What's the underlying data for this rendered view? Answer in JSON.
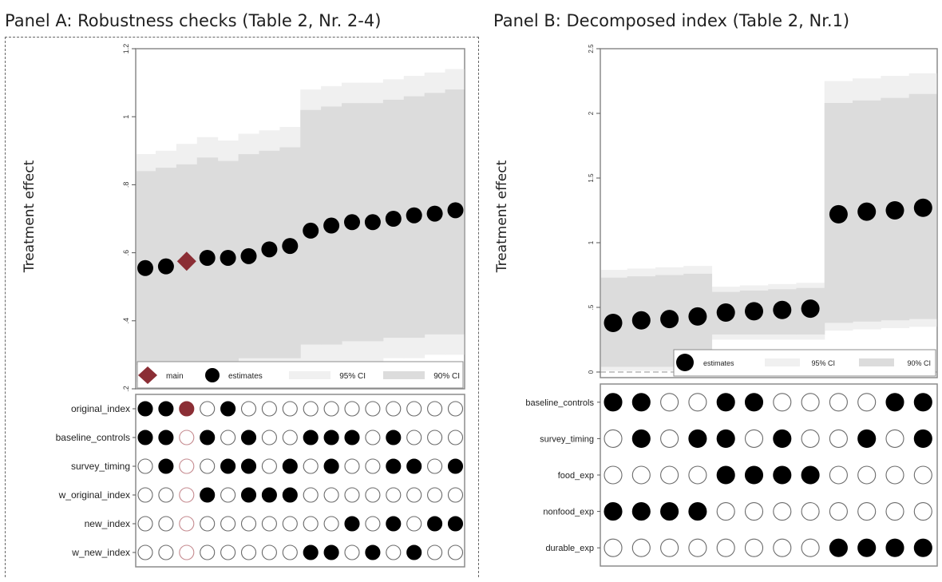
{
  "panels": [
    {
      "title": "Panel A: Robustness checks (Table 2, Nr. 2-4)",
      "ylabel": "Treatment effect",
      "legend": [
        {
          "label": "main",
          "marker": "diamond"
        },
        {
          "label": "estimates",
          "marker": "dot"
        },
        {
          "label": "95% CI",
          "marker": "band95"
        },
        {
          "label": "90% CI",
          "marker": "band90"
        }
      ],
      "spec_rows": [
        "original_index",
        "baseline_controls",
        "survey_timing",
        "w_original_index",
        "new_index",
        "w_new_index"
      ]
    },
    {
      "title": "Panel B: Decomposed index (Table 2, Nr.1)",
      "ylabel": "Treatment effect",
      "legend": [
        {
          "label": "estimates",
          "marker": "dot"
        },
        {
          "label": "95% CI",
          "marker": "band95"
        },
        {
          "label": "90% CI",
          "marker": "band90"
        }
      ],
      "spec_rows": [
        "baseline_controls",
        "survey_timing",
        "food_exp",
        "nonfood_exp",
        "durable_exp"
      ]
    }
  ],
  "colors": {
    "estimate": "#000000",
    "main": "#8b2e35",
    "ci95": "#f0f0f0",
    "ci90": "#dcdcdc",
    "frame": "#8c8c8c"
  },
  "chart_data": [
    {
      "type": "scatter",
      "title": "Panel A: Robustness checks (Table 2, Nr. 2-4)",
      "ylabel": "Treatment effect",
      "ylim": [
        0.2,
        1.2
      ],
      "yticks": [
        ".2",
        ".4",
        ".6",
        ".8",
        "1",
        "1.2"
      ],
      "yticks_values": [
        0.2,
        0.4,
        0.6,
        0.8,
        1.0,
        1.2
      ],
      "grid": false,
      "legend_position": "bottom",
      "main_index": 2,
      "estimates": [
        0.555,
        0.56,
        0.575,
        0.585,
        0.585,
        0.59,
        0.61,
        0.62,
        0.665,
        0.68,
        0.69,
        0.69,
        0.7,
        0.71,
        0.715,
        0.725
      ],
      "ci95": [
        [
          0.22,
          0.89
        ],
        [
          0.22,
          0.9
        ],
        [
          0.23,
          0.92
        ],
        [
          0.23,
          0.94
        ],
        [
          0.23,
          0.93
        ],
        [
          0.24,
          0.95
        ],
        [
          0.24,
          0.96
        ],
        [
          0.24,
          0.97
        ],
        [
          0.27,
          1.08
        ],
        [
          0.27,
          1.09
        ],
        [
          0.28,
          1.1
        ],
        [
          0.28,
          1.1
        ],
        [
          0.29,
          1.11
        ],
        [
          0.29,
          1.12
        ],
        [
          0.3,
          1.13
        ],
        [
          0.3,
          1.14
        ]
      ],
      "ci90": [
        [
          0.27,
          0.84
        ],
        [
          0.27,
          0.85
        ],
        [
          0.28,
          0.86
        ],
        [
          0.28,
          0.88
        ],
        [
          0.28,
          0.87
        ],
        [
          0.29,
          0.89
        ],
        [
          0.29,
          0.9
        ],
        [
          0.29,
          0.91
        ],
        [
          0.33,
          1.02
        ],
        [
          0.33,
          1.03
        ],
        [
          0.34,
          1.04
        ],
        [
          0.34,
          1.04
        ],
        [
          0.35,
          1.05
        ],
        [
          0.35,
          1.06
        ],
        [
          0.36,
          1.07
        ],
        [
          0.36,
          1.08
        ]
      ],
      "indicators": {
        "original_index": [
          1,
          1,
          1,
          0,
          1,
          0,
          0,
          0,
          0,
          0,
          0,
          0,
          0,
          0,
          0,
          0
        ],
        "baseline_controls": [
          1,
          1,
          0,
          1,
          0,
          1,
          0,
          0,
          1,
          1,
          1,
          0,
          1,
          0,
          0,
          0
        ],
        "survey_timing": [
          0,
          1,
          0,
          0,
          1,
          1,
          0,
          1,
          0,
          1,
          0,
          0,
          1,
          1,
          0,
          1
        ],
        "w_original_index": [
          0,
          0,
          0,
          1,
          0,
          1,
          1,
          1,
          0,
          0,
          0,
          0,
          0,
          0,
          0,
          0
        ],
        "new_index": [
          0,
          0,
          0,
          0,
          0,
          0,
          0,
          0,
          0,
          0,
          1,
          0,
          1,
          0,
          1,
          1
        ],
        "w_new_index": [
          0,
          0,
          0,
          0,
          0,
          0,
          0,
          0,
          1,
          1,
          0,
          1,
          0,
          1,
          0,
          0
        ]
      }
    },
    {
      "type": "scatter",
      "title": "Panel B: Decomposed index (Table 2, Nr.1)",
      "ylabel": "Treatment effect",
      "ylim": [
        0,
        2.5
      ],
      "yticks": [
        "0",
        ".5",
        "1",
        "1.5",
        "2",
        "2.5"
      ],
      "yticks_values": [
        0,
        0.5,
        1.0,
        1.5,
        2.0,
        2.5
      ],
      "grid": false,
      "reference_line": 0,
      "legend_position": "bottom",
      "estimates": [
        0.38,
        0.4,
        0.41,
        0.43,
        0.46,
        0.47,
        0.48,
        0.49,
        1.22,
        1.24,
        1.25,
        1.27
      ],
      "ci95": [
        [
          0.01,
          0.79
        ],
        [
          0.01,
          0.8
        ],
        [
          0.01,
          0.81
        ],
        [
          0.01,
          0.82
        ],
        [
          0.25,
          0.66
        ],
        [
          0.25,
          0.67
        ],
        [
          0.25,
          0.68
        ],
        [
          0.25,
          0.69
        ],
        [
          0.32,
          2.25
        ],
        [
          0.33,
          2.27
        ],
        [
          0.34,
          2.29
        ],
        [
          0.35,
          2.31
        ]
      ],
      "ci90": [
        [
          0.04,
          0.73
        ],
        [
          0.04,
          0.74
        ],
        [
          0.04,
          0.75
        ],
        [
          0.04,
          0.76
        ],
        [
          0.29,
          0.62
        ],
        [
          0.29,
          0.63
        ],
        [
          0.29,
          0.64
        ],
        [
          0.29,
          0.65
        ],
        [
          0.38,
          2.08
        ],
        [
          0.39,
          2.1
        ],
        [
          0.4,
          2.12
        ],
        [
          0.41,
          2.15
        ]
      ],
      "indicators": {
        "baseline_controls": [
          1,
          1,
          0,
          0,
          1,
          1,
          0,
          0,
          0,
          0,
          1,
          1
        ],
        "survey_timing": [
          0,
          1,
          0,
          1,
          1,
          0,
          1,
          0,
          0,
          1,
          0,
          1
        ],
        "food_exp": [
          0,
          0,
          0,
          0,
          1,
          1,
          1,
          1,
          0,
          0,
          0,
          0
        ],
        "nonfood_exp": [
          1,
          1,
          1,
          1,
          0,
          0,
          0,
          0,
          0,
          0,
          0,
          0
        ],
        "durable_exp": [
          0,
          0,
          0,
          0,
          0,
          0,
          0,
          0,
          1,
          1,
          1,
          1
        ]
      }
    }
  ]
}
